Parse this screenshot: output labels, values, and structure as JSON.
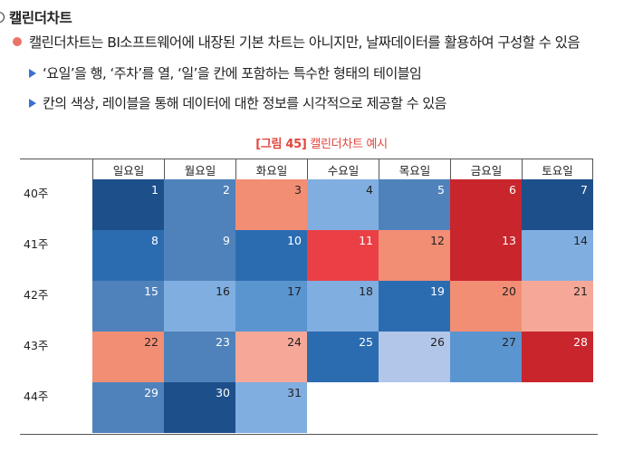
{
  "colors": {
    "accent": "#e2453c",
    "bullet": "#e9756a",
    "arrow": "#3a6fd1"
  },
  "heading": {
    "title": "캘린더차트"
  },
  "content": {
    "line1": "캘린더차트는 BI소프트웨어에 내장된 기본 차트는 아니지만, 날짜데이터를 활용하여 구성할 수 있음",
    "sub1": "‘요일’을 행, ‘주차’를 열, ‘일’을 칸에 포함하는 특수한 형태의 테이블임",
    "sub2": "칸의 색상, 레이블을 통해 데이터에 대한 정보를 시각적으로 제공할 수 있음"
  },
  "caption": {
    "number": "[그림 45]",
    "title": "캘린더차트 예시"
  },
  "chart_data": {
    "type": "table",
    "columns": [
      "일요일",
      "월요일",
      "화요일",
      "수요일",
      "목요일",
      "금요일",
      "토요일"
    ],
    "rows": [
      {
        "label": "40주",
        "days": [
          1,
          2,
          3,
          4,
          5,
          6,
          7
        ],
        "colors": [
          "#1d4f8a",
          "#4f82bb",
          "#f28e74",
          "#80aee0",
          "#4f82bb",
          "#c8252d",
          "#1d4f8a"
        ]
      },
      {
        "label": "41주",
        "days": [
          8,
          9,
          10,
          11,
          12,
          13,
          14
        ],
        "colors": [
          "#2b6cb1",
          "#4f82bb",
          "#2b6cb1",
          "#ea4045",
          "#f28e74",
          "#c8252d",
          "#80aee0"
        ]
      },
      {
        "label": "42주",
        "days": [
          15,
          16,
          17,
          18,
          19,
          20,
          21
        ],
        "colors": [
          "#4f82bb",
          "#80aee0",
          "#5b95d0",
          "#80aee0",
          "#2b6cb1",
          "#f28e74",
          "#f6a898"
        ]
      },
      {
        "label": "43주",
        "days": [
          22,
          23,
          24,
          25,
          26,
          27,
          28
        ],
        "colors": [
          "#f28e74",
          "#4f82bb",
          "#f6a898",
          "#2b6cb1",
          "#b1c6e8",
          "#5b95d0",
          "#c8252d"
        ]
      },
      {
        "label": "44주",
        "days": [
          29,
          30,
          31
        ],
        "colors": [
          "#4f82bb",
          "#1d4f8a",
          "#80aee0"
        ]
      }
    ],
    "text_light": "#ffffff",
    "text_dark": "#222222"
  }
}
